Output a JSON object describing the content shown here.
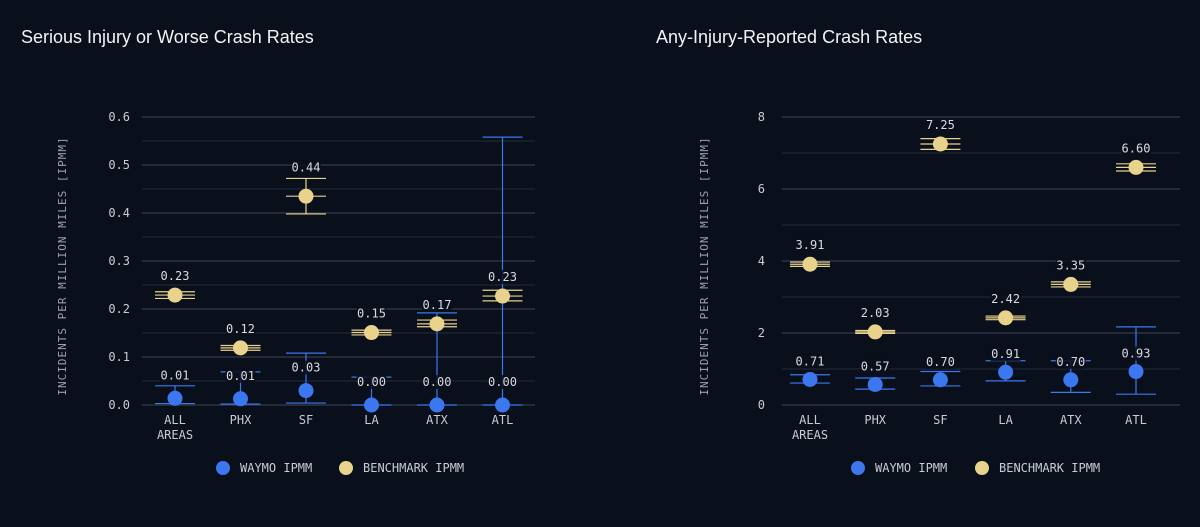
{
  "colors": {
    "background": "#0a0f1c",
    "grid": "#3d4656",
    "axis_text": "#c8ccd4",
    "waymo": "#3b78f0",
    "benchmark": "#e8d28c",
    "label": "#d8dbe1"
  },
  "chart_data": [
    {
      "type": "scatter",
      "title": "Serious Injury or Worse Crash Rates",
      "ylabel": "INCIDENTS PER MILLION MILES [IPMM]",
      "xlabel": "",
      "ylim": [
        0,
        0.6
      ],
      "yticks": [
        "0.0",
        "0.1",
        "0.2",
        "0.3",
        "0.4",
        "0.5",
        "0.6"
      ],
      "ytick_values": [
        0,
        0.1,
        0.2,
        0.3,
        0.4,
        0.5,
        0.6
      ],
      "categories": [
        [
          "ALL",
          "AREAS"
        ],
        [
          "PHX"
        ],
        [
          "SF"
        ],
        [
          "LA"
        ],
        [
          "ATX"
        ],
        [
          "ATL"
        ]
      ],
      "grid": true,
      "legend": "bottom",
      "series": [
        {
          "name": "WAYMO IPMM",
          "color_key": "waymo",
          "values": [
            0.014,
            0.013,
            0.03,
            0.0,
            0.0,
            0.0
          ],
          "labels": [
            "0.01",
            "0.01",
            "0.03",
            "0.00",
            "0.00",
            "0.00"
          ],
          "ci_low": [
            0.003,
            0.002,
            0.004,
            0.0,
            0.0,
            0.0
          ],
          "ci_high": [
            0.04,
            0.069,
            0.108,
            0.058,
            0.192,
            0.558
          ]
        },
        {
          "name": "BENCHMARK IPMM",
          "color_key": "benchmark",
          "values": [
            0.229,
            0.119,
            0.435,
            0.151,
            0.169,
            0.227
          ],
          "labels": [
            "0.23",
            "0.12",
            "0.44",
            "0.15",
            "0.17",
            "0.23"
          ],
          "ci_low": [
            0.222,
            0.114,
            0.398,
            0.146,
            0.163,
            0.217
          ],
          "ci_high": [
            0.236,
            0.124,
            0.472,
            0.156,
            0.177,
            0.239
          ]
        }
      ]
    },
    {
      "type": "scatter",
      "title": "Any-Injury-Reported Crash Rates",
      "ylabel": "INCIDENTS PER MILLION MILES [IPMM]",
      "xlabel": "",
      "ylim": [
        0,
        8
      ],
      "yticks": [
        "0",
        "2",
        "4",
        "6",
        "8"
      ],
      "ytick_values": [
        0,
        2,
        4,
        6,
        8
      ],
      "categories": [
        [
          "ALL",
          "AREAS"
        ],
        [
          "PHX"
        ],
        [
          "SF"
        ],
        [
          "LA"
        ],
        [
          "ATX"
        ],
        [
          "ATL"
        ]
      ],
      "grid": true,
      "legend": "bottom",
      "series": [
        {
          "name": "WAYMO IPMM",
          "color_key": "waymo",
          "values": [
            0.71,
            0.57,
            0.7,
            0.91,
            0.7,
            0.93
          ],
          "labels": [
            "0.71",
            "0.57",
            "0.70",
            "0.91",
            "0.70",
            "0.93"
          ],
          "ci_low": [
            0.61,
            0.44,
            0.53,
            0.67,
            0.35,
            0.3
          ],
          "ci_high": [
            0.84,
            0.75,
            0.93,
            1.23,
            1.23,
            2.17
          ]
        },
        {
          "name": "BENCHMARK IPMM",
          "color_key": "benchmark",
          "values": [
            3.91,
            2.03,
            7.25,
            2.42,
            3.35,
            6.6
          ],
          "labels": [
            "3.91",
            "2.03",
            "7.25",
            "2.42",
            "3.35",
            "6.60"
          ],
          "ci_low": [
            3.85,
            1.99,
            7.1,
            2.37,
            3.28,
            6.5
          ],
          "ci_high": [
            3.97,
            2.07,
            7.4,
            2.47,
            3.42,
            6.7
          ]
        }
      ]
    }
  ]
}
